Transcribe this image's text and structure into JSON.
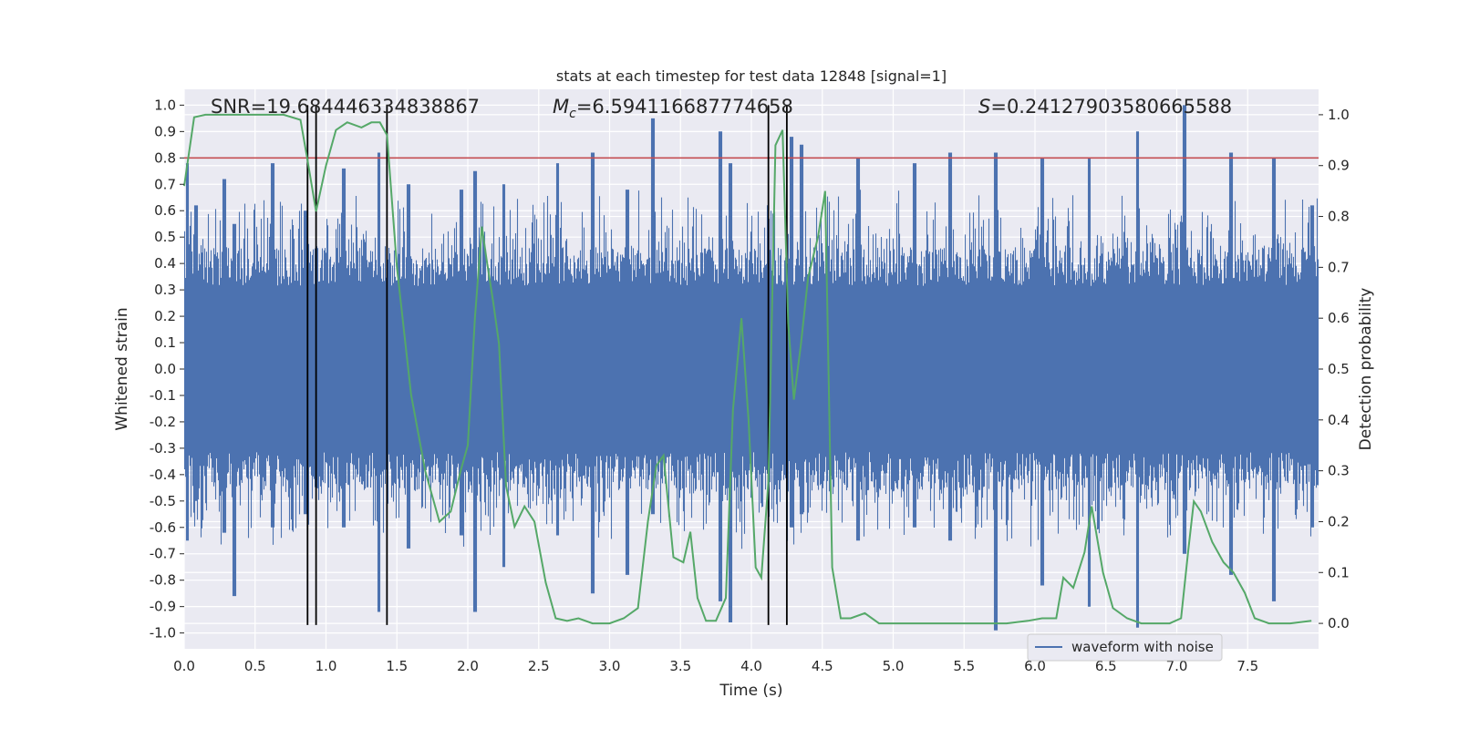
{
  "chart_data": {
    "type": "line",
    "title": "stats at each timestep for test data 12848 [signal=1]",
    "xlabel": "Time (s)",
    "ylabel": "Whitened strain",
    "y2label": "Detection probability",
    "xlim": [
      0,
      8
    ],
    "ylim": [
      -1.06,
      1.06
    ],
    "y2lim": [
      -0.05,
      1.05
    ],
    "x_ticks": [
      "0.0",
      "0.5",
      "1.0",
      "1.5",
      "2.0",
      "2.5",
      "3.0",
      "3.5",
      "4.0",
      "4.5",
      "5.0",
      "5.5",
      "6.0",
      "6.5",
      "7.0",
      "7.5"
    ],
    "y_ticks": [
      "1.0",
      "0.9",
      "0.8",
      "0.7",
      "0.6",
      "0.5",
      "0.4",
      "0.3",
      "0.2",
      "0.1",
      "0.0",
      "-0.1",
      "-0.2",
      "-0.3",
      "-0.4",
      "-0.5",
      "-0.6",
      "-0.7",
      "-0.8",
      "-0.9",
      "-1.0"
    ],
    "y2_ticks": [
      "1.0",
      "0.9",
      "0.8",
      "0.7",
      "0.6",
      "0.5",
      "0.4",
      "0.3",
      "0.2",
      "0.1",
      "0.0"
    ],
    "grid": true,
    "legend": {
      "position": "lower-right",
      "entries": [
        "waveform with noise"
      ]
    },
    "annotations": {
      "snr": "SNR=19.684446334838867",
      "mc_symbol": "M",
      "mc_sub": "c",
      "mc_value": "=6.594116687774658",
      "s_symbol": "S",
      "s_value": "=0.24127903580665588"
    },
    "series": [
      {
        "name": "waveform with noise",
        "color": "#4c72b0",
        "axis": "left",
        "peaks": [
          [
            0.02,
            0.78,
            -0.65
          ],
          [
            0.08,
            0.62,
            -0.5
          ],
          [
            0.28,
            0.72,
            -0.62
          ],
          [
            0.35,
            0.55,
            -0.86
          ],
          [
            0.62,
            0.78,
            -0.6
          ],
          [
            0.85,
            0.6,
            -0.55
          ],
          [
            1.12,
            0.76,
            -0.6
          ],
          [
            1.37,
            0.82,
            -0.92
          ],
          [
            1.58,
            0.7,
            -0.68
          ],
          [
            1.95,
            0.68,
            -0.63
          ],
          [
            2.05,
            0.75,
            -0.92
          ],
          [
            2.25,
            0.7,
            -0.75
          ],
          [
            2.63,
            0.78,
            -0.63
          ],
          [
            2.88,
            0.82,
            -0.85
          ],
          [
            3.12,
            0.68,
            -0.78
          ],
          [
            3.3,
            0.95,
            -0.55
          ],
          [
            3.78,
            0.9,
            -0.88
          ],
          [
            3.85,
            0.78,
            -0.96
          ],
          [
            4.28,
            0.88,
            -0.6
          ],
          [
            4.35,
            0.85,
            -0.55
          ],
          [
            4.75,
            0.8,
            -0.65
          ],
          [
            5.15,
            0.78,
            -0.6
          ],
          [
            5.4,
            0.82,
            -0.65
          ],
          [
            5.72,
            0.82,
            -0.99
          ],
          [
            6.05,
            0.8,
            -0.82
          ],
          [
            6.38,
            0.8,
            -0.9
          ],
          [
            6.72,
            0.9,
            -0.98
          ],
          [
            7.05,
            1.0,
            -0.7
          ],
          [
            7.38,
            0.82,
            -0.78
          ],
          [
            7.68,
            0.8,
            -0.88
          ],
          [
            7.95,
            0.62,
            -0.6
          ]
        ],
        "envelope": [
          0.42,
          -0.42
        ]
      },
      {
        "name": "",
        "color": "#55a868",
        "axis": "right",
        "x": [
          0.0,
          0.07,
          0.15,
          0.3,
          0.5,
          0.7,
          0.82,
          0.87,
          0.93,
          1.0,
          1.07,
          1.15,
          1.25,
          1.32,
          1.38,
          1.43,
          1.5,
          1.6,
          1.7,
          1.8,
          1.88,
          1.95,
          2.0,
          2.05,
          2.1,
          2.13,
          2.18,
          2.22,
          2.27,
          2.33,
          2.4,
          2.47,
          2.55,
          2.62,
          2.7,
          2.78,
          2.88,
          3.0,
          3.1,
          3.2,
          3.27,
          3.33,
          3.38,
          3.45,
          3.52,
          3.57,
          3.62,
          3.68,
          3.75,
          3.82,
          3.87,
          3.93,
          3.98,
          4.03,
          4.07,
          4.12,
          4.17,
          4.22,
          4.26,
          4.3,
          4.35,
          4.4,
          4.47,
          4.52,
          4.57,
          4.63,
          4.7,
          4.8,
          4.9,
          5.0,
          5.2,
          5.5,
          5.8,
          5.95,
          6.05,
          6.15,
          6.2,
          6.27,
          6.35,
          6.4,
          6.48,
          6.55,
          6.65,
          6.75,
          6.85,
          6.95,
          7.03,
          7.08,
          7.12,
          7.17,
          7.25,
          7.33,
          7.4,
          7.48,
          7.55,
          7.65,
          7.8,
          7.95
        ],
        "y": [
          0.86,
          0.995,
          1.0,
          1.0,
          1.0,
          1.0,
          0.99,
          0.91,
          0.81,
          0.9,
          0.97,
          0.985,
          0.975,
          0.985,
          0.985,
          0.96,
          0.7,
          0.45,
          0.3,
          0.2,
          0.22,
          0.3,
          0.35,
          0.6,
          0.78,
          0.72,
          0.63,
          0.55,
          0.27,
          0.19,
          0.23,
          0.2,
          0.08,
          0.01,
          0.005,
          0.01,
          0.0,
          0.0,
          0.01,
          0.03,
          0.2,
          0.31,
          0.33,
          0.13,
          0.12,
          0.18,
          0.05,
          0.005,
          0.005,
          0.05,
          0.42,
          0.6,
          0.4,
          0.11,
          0.09,
          0.28,
          0.94,
          0.97,
          0.59,
          0.44,
          0.55,
          0.68,
          0.76,
          0.85,
          0.11,
          0.01,
          0.01,
          0.02,
          0.0,
          0.0,
          0.0,
          0.0,
          0.0,
          0.005,
          0.01,
          0.01,
          0.09,
          0.07,
          0.14,
          0.23,
          0.1,
          0.03,
          0.01,
          0.0,
          0.0,
          0.0,
          0.01,
          0.14,
          0.24,
          0.22,
          0.16,
          0.12,
          0.1,
          0.06,
          0.01,
          0.0,
          0.0,
          0.005
        ]
      }
    ],
    "threshold": {
      "color": "#c44e52",
      "value": 0.8,
      "axis": "left"
    },
    "vlines": {
      "color": "#000000",
      "x": [
        0.87,
        0.93,
        1.43,
        4.12,
        4.25
      ],
      "y_range": [
        -0.97,
        1.0
      ]
    }
  }
}
